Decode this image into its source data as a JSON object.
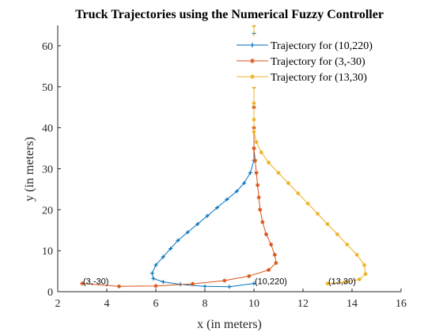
{
  "chart_data": {
    "type": "line",
    "title": "Truck Trajectories using the Numerical Fuzzy Controller",
    "xlabel": "x (in meters)",
    "ylabel": "y (in meters)",
    "xlim": [
      2,
      16
    ],
    "ylim": [
      0,
      65
    ],
    "xticks": [
      2,
      4,
      6,
      8,
      10,
      12,
      14,
      16
    ],
    "yticks": [
      0,
      10,
      20,
      30,
      40,
      50,
      60
    ],
    "legend_position": "top-right",
    "annotations": [
      {
        "text": "(3,-30)",
        "x": 3.0,
        "y": 2.0
      },
      {
        "text": "(10,220)",
        "x": 10.0,
        "y": 2.0
      },
      {
        "text": "(13,30)",
        "x": 13.0,
        "y": 2.0
      }
    ],
    "series": [
      {
        "name": "Trajectory for (10,220)",
        "color": "#0072BD",
        "marker": "plus",
        "x": [
          10.0,
          9.0,
          8.0,
          7.0,
          6.3,
          5.9,
          5.85,
          6.0,
          6.3,
          6.6,
          6.9,
          7.3,
          7.7,
          8.1,
          8.5,
          8.9,
          9.3,
          9.6,
          9.85,
          10.0,
          10.0,
          10.0,
          10.0,
          10.0,
          10.0,
          10.0,
          10.0,
          10.0
        ],
        "y": [
          2.0,
          1.2,
          1.3,
          1.8,
          2.4,
          3.2,
          4.5,
          6.5,
          8.5,
          10.5,
          12.5,
          14.5,
          16.5,
          18.5,
          20.5,
          22.5,
          24.5,
          26.5,
          29.0,
          32.0,
          35.0,
          40.0,
          45.0,
          50.0,
          55.0,
          60.0,
          63.0,
          65.0
        ]
      },
      {
        "name": "Trajectory for (3,-30)",
        "color": "#D95319",
        "marker": "star",
        "x": [
          3.0,
          4.5,
          6.0,
          7.5,
          8.8,
          9.8,
          10.6,
          10.9,
          10.85,
          10.7,
          10.5,
          10.35,
          10.25,
          10.2,
          10.15,
          10.1,
          10.05,
          10.0,
          10.0,
          10.0,
          10.0,
          10.0,
          10.0,
          10.0
        ],
        "y": [
          2.0,
          1.3,
          1.4,
          1.9,
          2.7,
          3.8,
          5.3,
          7.0,
          9.0,
          11.5,
          14.0,
          17.0,
          20.0,
          23.0,
          26.0,
          29.0,
          32.0,
          35.0,
          40.0,
          45.0,
          50.0,
          55.0,
          60.0,
          65.0
        ]
      },
      {
        "name": "Trajectory for (13,30)",
        "color": "#EDB120",
        "marker": "star",
        "x": [
          13.0,
          13.7,
          14.3,
          14.55,
          14.5,
          14.2,
          13.8,
          13.4,
          13.0,
          12.6,
          12.2,
          11.8,
          11.4,
          11.0,
          10.6,
          10.3,
          10.1,
          10.0,
          10.0,
          10.0,
          10.0,
          10.0,
          10.0,
          10.0
        ],
        "y": [
          2.0,
          2.3,
          3.0,
          4.3,
          6.5,
          9.0,
          11.5,
          14.0,
          16.5,
          19.0,
          21.5,
          24.0,
          26.5,
          29.0,
          31.5,
          34.0,
          36.5,
          39.0,
          42.0,
          46.0,
          50.0,
          55.0,
          60.0,
          65.0
        ]
      }
    ]
  }
}
